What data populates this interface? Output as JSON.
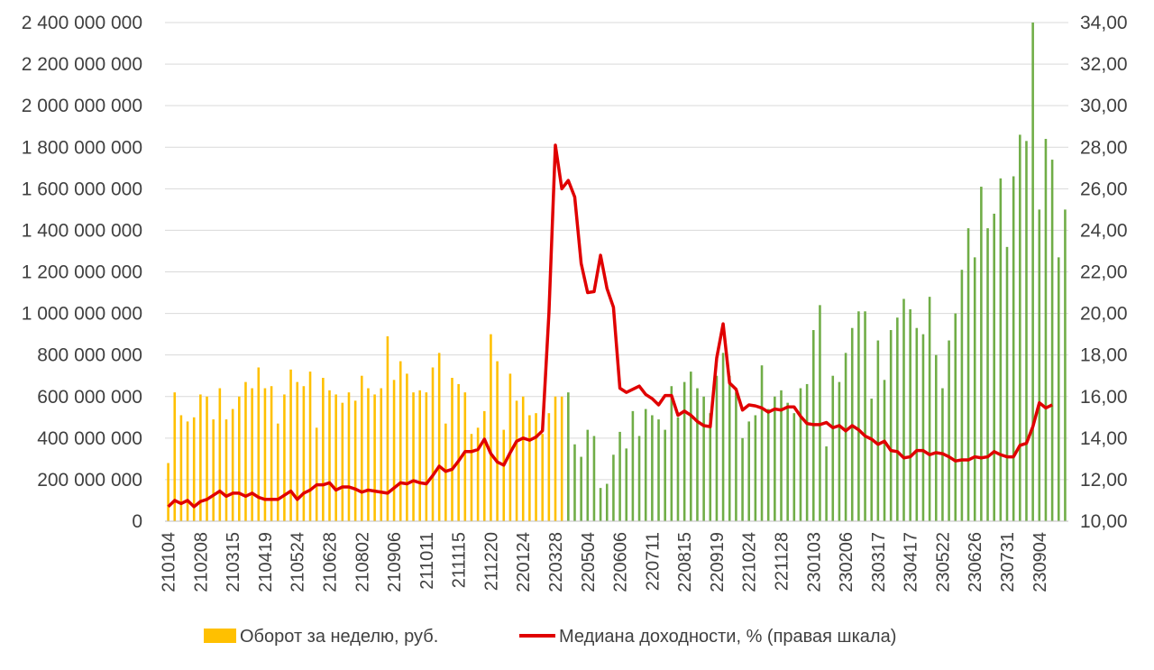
{
  "chart_data": {
    "type": "bar+line",
    "title": "",
    "grid": true,
    "legend_position": "bottom",
    "y_left": {
      "min": 0,
      "max": 2400000000,
      "step": 200000000,
      "tick_labels": [
        "0",
        "200 000 000",
        "400 000 000",
        "600 000 000",
        "800 000 000",
        "1 000 000 000",
        "1 200 000 000",
        "1 400 000 000",
        "1 600 000 000",
        "1 800 000 000",
        "2 000 000 000",
        "2 200 000 000",
        "2 400 000 000"
      ]
    },
    "y_right": {
      "min": 10,
      "max": 34,
      "step": 2,
      "tick_labels": [
        "10,00",
        "12,00",
        "14,00",
        "16,00",
        "18,00",
        "20,00",
        "22,00",
        "24,00",
        "26,00",
        "28,00",
        "30,00",
        "32,00",
        "34,00"
      ]
    },
    "x_tick_labels": [
      "210104",
      "210208",
      "210315",
      "210419",
      "210524",
      "210628",
      "210802",
      "210906",
      "211011",
      "211115",
      "211220",
      "220124",
      "220328",
      "220504",
      "220606",
      "220711",
      "220815",
      "220919",
      "221024",
      "221128",
      "230103",
      "230206",
      "230317",
      "230417",
      "230522",
      "230626",
      "230731",
      "230904"
    ],
    "x_tick_step": 5,
    "bar_colors": {
      "before": "#FFC000",
      "after": "#70AD47"
    },
    "color_switch_index": 62,
    "line_color": "#E00000",
    "series": [
      {
        "name": "Оборот за неделю, руб.",
        "type": "bar",
        "values": [
          280000000,
          620000000,
          510000000,
          480000000,
          500000000,
          610000000,
          600000000,
          490000000,
          640000000,
          490000000,
          540000000,
          600000000,
          670000000,
          640000000,
          740000000,
          640000000,
          650000000,
          470000000,
          610000000,
          730000000,
          670000000,
          650000000,
          720000000,
          450000000,
          690000000,
          630000000,
          610000000,
          570000000,
          620000000,
          580000000,
          700000000,
          640000000,
          610000000,
          640000000,
          890000000,
          680000000,
          770000000,
          710000000,
          620000000,
          630000000,
          620000000,
          740000000,
          810000000,
          470000000,
          690000000,
          660000000,
          620000000,
          420000000,
          450000000,
          530000000,
          900000000,
          770000000,
          440000000,
          710000000,
          580000000,
          600000000,
          510000000,
          520000000,
          420000000,
          520000000,
          600000000,
          600000000,
          620000000,
          370000000,
          310000000,
          440000000,
          410000000,
          160000000,
          180000000,
          320000000,
          430000000,
          350000000,
          530000000,
          410000000,
          540000000,
          510000000,
          490000000,
          440000000,
          650000000,
          500000000,
          670000000,
          720000000,
          640000000,
          600000000,
          520000000,
          700000000,
          810000000,
          700000000,
          620000000,
          400000000,
          480000000,
          510000000,
          750000000,
          540000000,
          600000000,
          630000000,
          570000000,
          520000000,
          640000000,
          660000000,
          920000000,
          1040000000,
          360000000,
          700000000,
          670000000,
          810000000,
          930000000,
          1010000000,
          1010000000,
          590000000,
          870000000,
          680000000,
          920000000,
          980000000,
          1070000000,
          1020000000,
          930000000,
          900000000,
          1080000000,
          800000000,
          640000000,
          870000000,
          1000000000,
          1210000000,
          1410000000,
          1270000000,
          1610000000,
          1410000000,
          1480000000,
          1650000000,
          1320000000,
          1660000000,
          1860000000,
          1830000000,
          2400000000,
          1500000000,
          1840000000,
          1740000000,
          1270000000,
          1500000000
        ]
      },
      {
        "name": "Медиана доходности, % (правая шкала)",
        "type": "line",
        "values": [
          10.7,
          11.0,
          10.85,
          11.0,
          10.7,
          10.95,
          11.05,
          11.25,
          11.45,
          11.2,
          11.35,
          11.35,
          11.2,
          11.35,
          11.15,
          11.05,
          11.05,
          11.05,
          11.25,
          11.45,
          11.05,
          11.35,
          11.5,
          11.75,
          11.75,
          11.85,
          11.5,
          11.65,
          11.65,
          11.55,
          11.4,
          11.5,
          11.45,
          11.4,
          11.35,
          11.6,
          11.85,
          11.8,
          11.95,
          11.85,
          11.8,
          12.2,
          12.65,
          12.4,
          12.5,
          12.9,
          13.35,
          13.35,
          13.45,
          13.95,
          13.25,
          12.85,
          12.7,
          13.3,
          13.85,
          14.0,
          13.9,
          14.05,
          14.35,
          20.0,
          28.1,
          26.0,
          26.4,
          25.6,
          22.4,
          21.0,
          21.05,
          22.8,
          21.2,
          20.3,
          16.4,
          16.2,
          16.35,
          16.5,
          16.1,
          15.9,
          15.6,
          16.05,
          16.05,
          15.1,
          15.3,
          15.1,
          14.8,
          14.6,
          14.55,
          17.85,
          19.5,
          16.65,
          16.35,
          15.35,
          15.6,
          15.55,
          15.45,
          15.25,
          15.4,
          15.35,
          15.5,
          15.5,
          15.05,
          14.7,
          14.65,
          14.65,
          14.75,
          14.5,
          14.6,
          14.35,
          14.6,
          14.4,
          14.1,
          13.95,
          13.7,
          13.85,
          13.4,
          13.35,
          13.05,
          13.1,
          13.4,
          13.4,
          13.2,
          13.3,
          13.25,
          13.1,
          12.9,
          12.95,
          12.95,
          13.1,
          13.05,
          13.1,
          13.35,
          13.2,
          13.1,
          13.1,
          13.65,
          13.75,
          14.55,
          15.7,
          15.45,
          15.6
        ]
      }
    ]
  }
}
